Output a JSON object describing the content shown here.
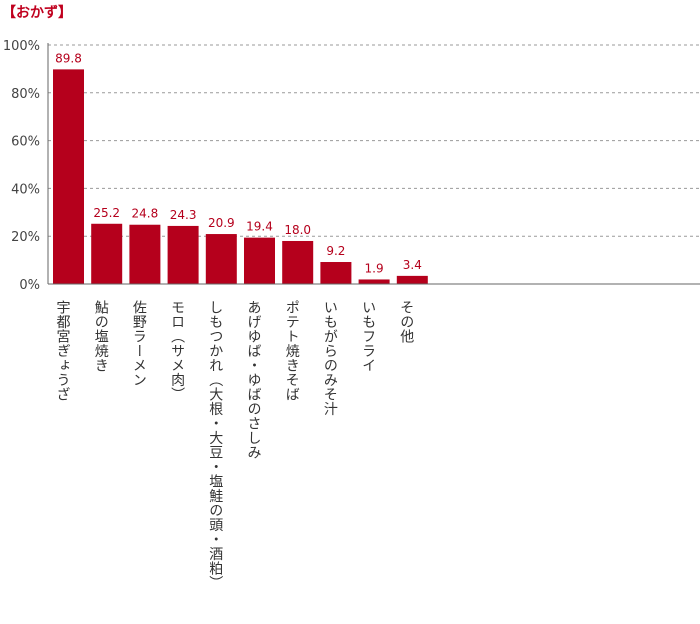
{
  "chart_data": {
    "type": "bar",
    "title": "【おかず】",
    "categories": [
      "宇都宮ぎょうざ",
      "鮎の塩焼き",
      "佐野ラーメン",
      "モロ（サメ肉）",
      "しもつかれ（大根・大豆・塩鮭の頭・酒粕）",
      "あげゆば・ゆばのさしみ",
      "ポテト焼きそば",
      "いもがらのみそ汁",
      "いもフライ",
      "その他"
    ],
    "values": [
      89.8,
      25.2,
      24.8,
      24.3,
      20.9,
      19.4,
      18.0,
      9.2,
      1.9,
      3.4
    ],
    "value_labels": [
      "89.8",
      "25.2",
      "24.8",
      "24.3",
      "20.9",
      "19.4",
      "18.0",
      "9.2",
      "1.9",
      "3.4"
    ],
    "yticks": [
      "0%",
      "20%",
      "40%",
      "60%",
      "80%",
      "100%"
    ],
    "ylim": [
      0,
      100
    ],
    "grid": true,
    "bar_color": "#b5001c",
    "label_color": "#b5001c",
    "title_color": "#c0001e"
  }
}
